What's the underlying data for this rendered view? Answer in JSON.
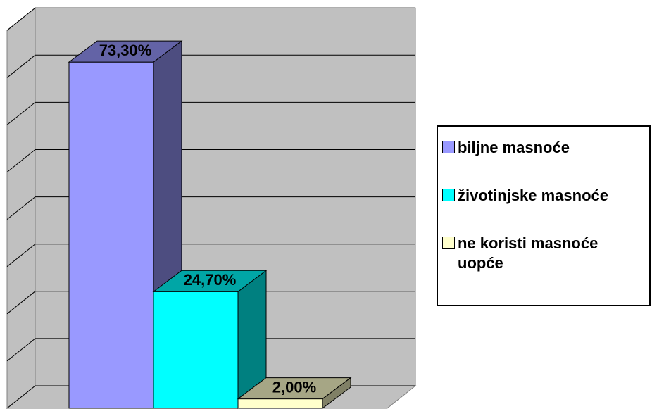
{
  "chart_data": {
    "type": "bar3d",
    "series": [
      {
        "name": "biljne masnoće",
        "color": "#9999ff",
        "values": [
          73.3
        ],
        "value_labels": [
          "73,30%"
        ]
      },
      {
        "name": "životinjske masnoće",
        "color": "#00ffff",
        "values": [
          24.7
        ],
        "value_labels": [
          "24,70%"
        ]
      },
      {
        "name": "ne koristi masnoće uopće",
        "color": "#ffffcc",
        "values": [
          2.0
        ],
        "value_labels": [
          "2,00%"
        ]
      }
    ],
    "ylim": [
      0,
      80
    ],
    "yticks": [
      0,
      10,
      20,
      30,
      40,
      50,
      60,
      70,
      80
    ],
    "grid": true,
    "legend": "right"
  }
}
